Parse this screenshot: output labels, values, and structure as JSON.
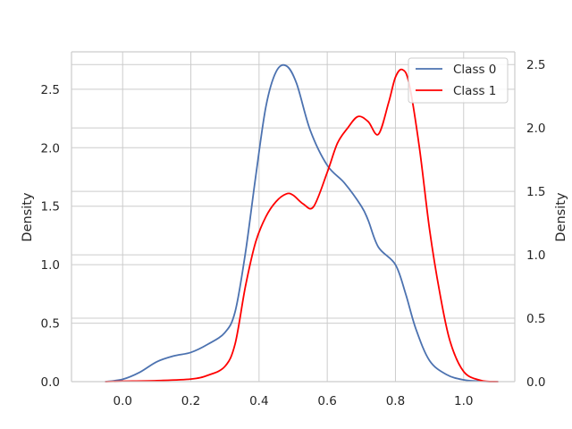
{
  "chart_data": {
    "type": "line",
    "title": "",
    "xlabel": "",
    "ylabel_left": "Density",
    "ylabel_right": "Density",
    "xlim": [
      -0.15,
      1.15
    ],
    "ylim_left": [
      0,
      2.82
    ],
    "ylim_right": [
      0,
      2.6
    ],
    "x_ticks": [
      0.0,
      0.2,
      0.4,
      0.6,
      0.8,
      1.0
    ],
    "x_tick_labels": [
      "0.0",
      "0.2",
      "0.4",
      "0.6",
      "0.8",
      "1.0"
    ],
    "y_left_ticks": [
      0.0,
      0.5,
      1.0,
      1.5,
      2.0,
      2.5
    ],
    "y_left_tick_labels": [
      "0.0",
      "0.5",
      "1.0",
      "1.5",
      "2.0",
      "2.5"
    ],
    "y_right_ticks": [
      0.0,
      0.5,
      1.0,
      1.5,
      2.0,
      2.5
    ],
    "y_right_tick_labels": [
      "0.0",
      "0.5",
      "1.0",
      "1.5",
      "2.0",
      "2.5"
    ],
    "grid": true,
    "legend_position": "top-right",
    "series": [
      {
        "name": "Class 0",
        "axis": "left",
        "color": "#4c72b0",
        "x": [
          -0.05,
          0.0,
          0.05,
          0.1,
          0.15,
          0.2,
          0.25,
          0.3,
          0.33,
          0.36,
          0.39,
          0.42,
          0.45,
          0.48,
          0.51,
          0.55,
          0.6,
          0.65,
          0.7,
          0.72,
          0.75,
          0.8,
          0.83,
          0.86,
          0.9,
          0.95,
          1.0,
          1.05,
          1.1
        ],
        "y": [
          0.0,
          0.02,
          0.08,
          0.17,
          0.22,
          0.25,
          0.32,
          0.42,
          0.6,
          1.1,
          1.75,
          2.35,
          2.65,
          2.7,
          2.55,
          2.15,
          1.85,
          1.7,
          1.5,
          1.38,
          1.15,
          1.0,
          0.75,
          0.45,
          0.18,
          0.06,
          0.015,
          0.003,
          0.0
        ]
      },
      {
        "name": "Class 1",
        "axis": "right",
        "color": "#ff0000",
        "x": [
          -0.05,
          0.0,
          0.1,
          0.2,
          0.25,
          0.3,
          0.33,
          0.36,
          0.39,
          0.42,
          0.45,
          0.48,
          0.5,
          0.53,
          0.56,
          0.6,
          0.63,
          0.66,
          0.69,
          0.72,
          0.75,
          0.78,
          0.8,
          0.82,
          0.84,
          0.87,
          0.9,
          0.93,
          0.96,
          1.0,
          1.05,
          1.1
        ],
        "y": [
          0.0,
          0.003,
          0.008,
          0.02,
          0.05,
          0.12,
          0.3,
          0.75,
          1.1,
          1.3,
          1.42,
          1.48,
          1.47,
          1.4,
          1.38,
          1.65,
          1.88,
          2.0,
          2.09,
          2.05,
          1.95,
          2.2,
          2.4,
          2.46,
          2.35,
          1.85,
          1.2,
          0.7,
          0.32,
          0.08,
          0.01,
          0.0
        ]
      }
    ]
  }
}
